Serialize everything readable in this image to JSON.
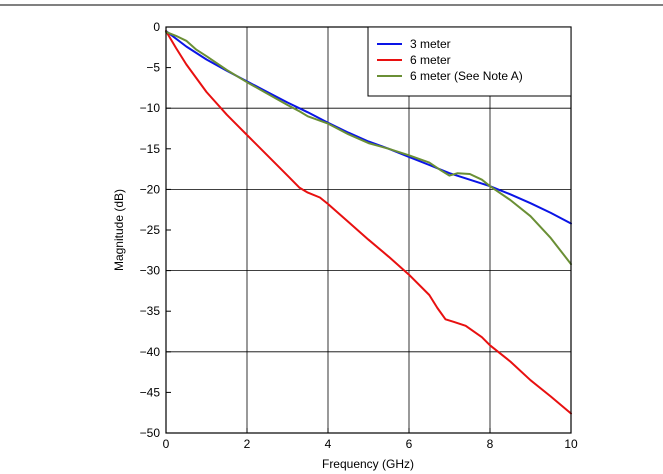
{
  "chart_data": {
    "type": "line",
    "xlabel": "Frequency (GHz)",
    "ylabel": "Magnitude (dB)",
    "xlim": [
      0,
      10
    ],
    "ylim": [
      -50,
      0
    ],
    "x_ticks": [
      0,
      2,
      4,
      6,
      8,
      10
    ],
    "y_ticks": [
      0,
      -5,
      -10,
      -15,
      -20,
      -25,
      -30,
      -35,
      -40,
      -45,
      -50
    ],
    "x_tick_labels": [
      "0",
      "2",
      "4",
      "6",
      "8",
      "10"
    ],
    "y_tick_labels": [
      "0",
      "−5",
      "−10",
      "−15",
      "−20",
      "−25",
      "−30",
      "−35",
      "−40",
      "−45",
      "−50"
    ],
    "grid": true,
    "legend_position": "top-right",
    "series": [
      {
        "name": "3 meter",
        "color": "#0a14e6",
        "x": [
          0,
          0.5,
          1,
          1.5,
          2,
          2.5,
          3,
          3.5,
          4,
          4.5,
          5,
          5.5,
          6,
          6.5,
          7,
          7.5,
          8,
          8.5,
          9,
          9.5,
          10
        ],
        "y": [
          -0.5,
          -2.4,
          -4.0,
          -5.4,
          -6.7,
          -8.0,
          -9.3,
          -10.5,
          -11.8,
          -13.0,
          -14.1,
          -15.0,
          -16.0,
          -17.0,
          -18.0,
          -18.8,
          -19.6,
          -20.6,
          -21.7,
          -22.9,
          -24.2
        ]
      },
      {
        "name": "6 meter",
        "color": "#e81010",
        "x": [
          0,
          0.25,
          0.5,
          1,
          1.5,
          2,
          2.5,
          3,
          3.3,
          3.5,
          3.8,
          4,
          4.5,
          5,
          5.5,
          6,
          6.5,
          6.7,
          6.9,
          7.1,
          7.4,
          7.8,
          8,
          8.5,
          9,
          9.5,
          10
        ],
        "y": [
          -0.5,
          -2.6,
          -4.6,
          -8.0,
          -10.8,
          -13.3,
          -15.8,
          -18.3,
          -19.8,
          -20.4,
          -21.0,
          -21.8,
          -24.0,
          -26.2,
          -28.3,
          -30.5,
          -33.0,
          -34.6,
          -36.0,
          -36.3,
          -36.8,
          -38.2,
          -39.2,
          -41.2,
          -43.5,
          -45.5,
          -47.6
        ]
      },
      {
        "name": "6 meter (See Note A)",
        "color": "#6a8f35",
        "x": [
          0,
          0.25,
          0.5,
          0.75,
          1,
          1.5,
          2,
          2.5,
          3,
          3.3,
          3.5,
          4,
          4.5,
          5,
          5.5,
          6,
          6.5,
          6.8,
          7,
          7.2,
          7.5,
          7.8,
          8,
          8.5,
          9,
          9.5,
          10
        ],
        "y": [
          -0.6,
          -1.1,
          -1.7,
          -2.8,
          -3.6,
          -5.3,
          -6.8,
          -8.2,
          -9.6,
          -10.4,
          -11.0,
          -11.9,
          -13.2,
          -14.3,
          -15.0,
          -15.8,
          -16.7,
          -17.7,
          -18.3,
          -18.0,
          -18.1,
          -18.8,
          -19.6,
          -21.3,
          -23.3,
          -26.0,
          -29.2
        ]
      }
    ]
  }
}
